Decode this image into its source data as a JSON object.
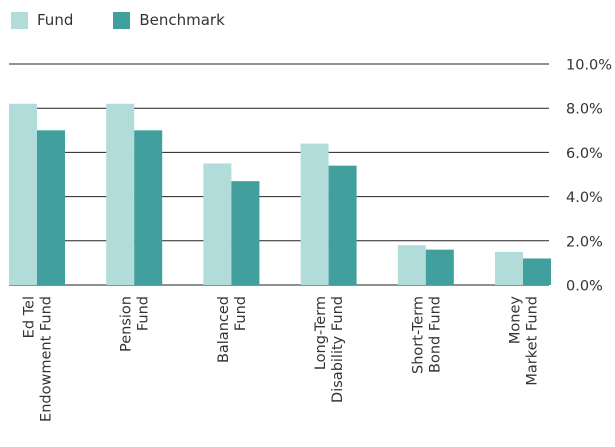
{
  "chart_data": {
    "type": "bar",
    "categories": [
      [
        "Ed Tel",
        "Endowment Fund"
      ],
      [
        "Pension",
        "Fund"
      ],
      [
        "Balanced",
        "Fund"
      ],
      [
        "Long-Term",
        "Disability Fund"
      ],
      [
        "Short-Term",
        "Bond Fund"
      ],
      [
        "Money",
        "Market Fund"
      ]
    ],
    "series": [
      {
        "name": "Fund",
        "color": "#b2dcd9",
        "values": [
          8.2,
          8.2,
          5.5,
          6.4,
          1.8,
          1.5
        ]
      },
      {
        "name": "Benchmark",
        "color": "#419f9e",
        "values": [
          7.0,
          7.0,
          4.7,
          5.4,
          1.6,
          1.2
        ]
      }
    ],
    "ylim": [
      0,
      10
    ],
    "yticks": [
      "10.0%",
      "8.0%",
      "6.0%",
      "4.0%",
      "2.0%",
      "0.0%"
    ],
    "grid": true,
    "legend_position": "top-left",
    "title": "",
    "xlabel": "",
    "ylabel": ""
  }
}
